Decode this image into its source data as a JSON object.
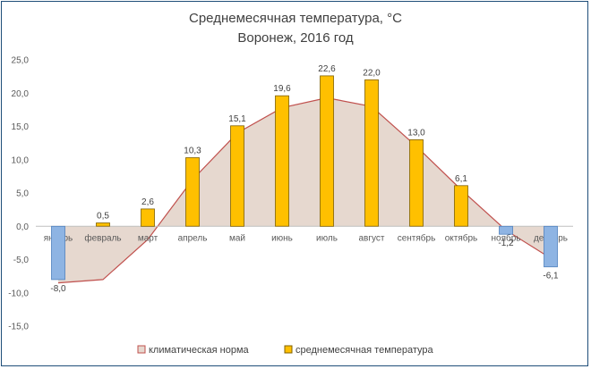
{
  "chart_data": {
    "type": "bar",
    "title": "Среднемесячная  температура, °С",
    "subtitle": "Воронеж,  2016 год",
    "categories": [
      "январь",
      "февраль",
      "март",
      "апрель",
      "май",
      "июнь",
      "июль",
      "август",
      "сентябрь",
      "октябрь",
      "ноябрь",
      "декабрь"
    ],
    "series": [
      {
        "name": "среднемесячная температура",
        "kind": "bar",
        "color": "#FFC000",
        "negative_color": "#8EB4E3",
        "values": [
          -8.0,
          0.5,
          2.6,
          10.3,
          15.1,
          19.6,
          22.6,
          22.0,
          13.0,
          6.1,
          -1.2,
          -6.1
        ],
        "labels": [
          "-8,0",
          "0,5",
          "2,6",
          "10,3",
          "15,1",
          "19,6",
          "22,6",
          "22,0",
          "13,0",
          "6,1",
          "-1,2",
          "-6,1"
        ]
      },
      {
        "name": "климатическая норма",
        "kind": "area",
        "color": "#C0504D",
        "fill": "#E6D8CF",
        "values": [
          -8.5,
          -8.0,
          -2.0,
          7.0,
          14.0,
          17.8,
          19.3,
          18.0,
          12.0,
          5.5,
          -0.6,
          -4.8
        ]
      }
    ],
    "yticks": [
      "25,0",
      "20,0",
      "15,0",
      "10,0",
      "5,0",
      "0,0",
      "-5,0",
      "-10,0",
      "-15,0"
    ],
    "ylim": [
      -15,
      25
    ],
    "grid": false,
    "legend": "bottom"
  }
}
